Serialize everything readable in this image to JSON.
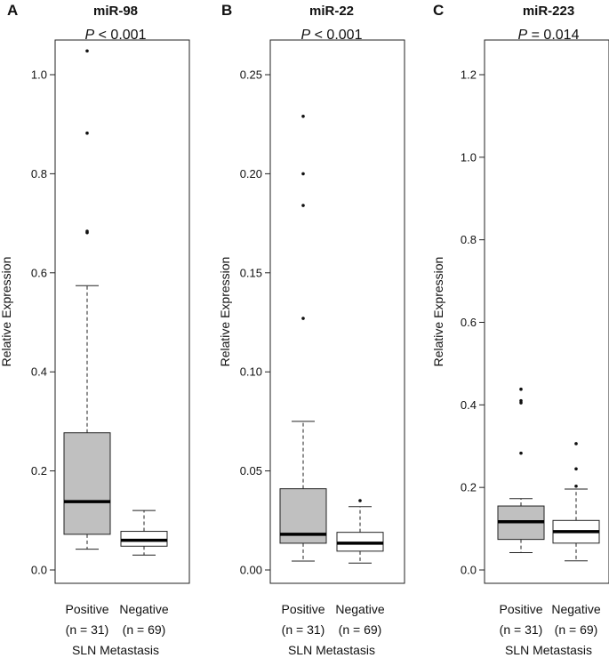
{
  "chart_data": [
    {
      "type": "box",
      "panel_label": "A",
      "title": "miR-98",
      "pvalue": {
        "italic": "P",
        "rest": " < 0.001"
      },
      "ylabel": "Relative Expression",
      "xlabel": "SLN Metastasis",
      "ylim": [
        0,
        1.05
      ],
      "yticks": [
        0.0,
        0.2,
        0.4,
        0.6,
        0.8,
        1.0
      ],
      "ytick_labels": [
        "0.0",
        "0.2",
        "0.4",
        "0.6",
        "0.8",
        "1.0"
      ],
      "groups": [
        {
          "name": "Positive",
          "n_label": "(n = 31)",
          "fill": "#c0c0c0",
          "whisker_low": 0.042,
          "q1": 0.072,
          "median": 0.138,
          "q3": 0.277,
          "whisker_high": 0.574,
          "outliers": [
            1.048,
            0.882,
            0.684,
            0.681
          ]
        },
        {
          "name": "Negative",
          "n_label": "(n = 69)",
          "fill": "#ffffff",
          "whisker_low": 0.03,
          "q1": 0.048,
          "median": 0.06,
          "q3": 0.078,
          "whisker_high": 0.12,
          "outliers": []
        }
      ]
    },
    {
      "type": "box",
      "panel_label": "B",
      "title": "miR-22",
      "pvalue": {
        "italic": "P",
        "rest": " < 0.001"
      },
      "ylabel": "Relative Expression",
      "xlabel": "SLN Metastasis",
      "ylim": [
        0,
        0.26
      ],
      "yticks": [
        0.0,
        0.05,
        0.1,
        0.15,
        0.2,
        0.25
      ],
      "ytick_labels": [
        "0.00",
        "0.05",
        "0.10",
        "0.15",
        "0.20",
        "0.25"
      ],
      "groups": [
        {
          "name": "Positive",
          "n_label": "(n = 31)",
          "fill": "#c0c0c0",
          "whisker_low": 0.0045,
          "q1": 0.0135,
          "median": 0.018,
          "q3": 0.041,
          "whisker_high": 0.075,
          "outliers": [
            0.229,
            0.2,
            0.184,
            0.127
          ]
        },
        {
          "name": "Negative",
          "n_label": "(n = 69)",
          "fill": "#ffffff",
          "whisker_low": 0.0035,
          "q1": 0.0095,
          "median": 0.0135,
          "q3": 0.019,
          "whisker_high": 0.032,
          "outliers": [
            0.035
          ]
        }
      ]
    },
    {
      "type": "box",
      "panel_label": "C",
      "title": "miR-223",
      "pvalue": {
        "italic": "P",
        "rest": " = 0.014"
      },
      "ylabel": "Relative Expression",
      "xlabel": "SLN Metastasis",
      "ylim": [
        0,
        1.25
      ],
      "yticks": [
        0.0,
        0.2,
        0.4,
        0.6,
        0.8,
        1.0,
        1.2
      ],
      "ytick_labels": [
        "0.0",
        "0.2",
        "0.4",
        "0.6",
        "0.8",
        "1.0",
        "1.2"
      ],
      "groups": [
        {
          "name": "Positive",
          "n_label": "(n = 31)",
          "fill": "#c0c0c0",
          "whisker_low": 0.042,
          "q1": 0.074,
          "median": 0.117,
          "q3": 0.155,
          "whisker_high": 0.173,
          "outliers": [
            0.438,
            0.41,
            0.405,
            0.283
          ]
        },
        {
          "name": "Negative",
          "n_label": "(n = 69)",
          "fill": "#ffffff",
          "whisker_low": 0.022,
          "q1": 0.065,
          "median": 0.093,
          "q3": 0.12,
          "whisker_high": 0.196,
          "outliers": [
            0.306,
            0.245,
            0.203
          ]
        }
      ]
    }
  ]
}
